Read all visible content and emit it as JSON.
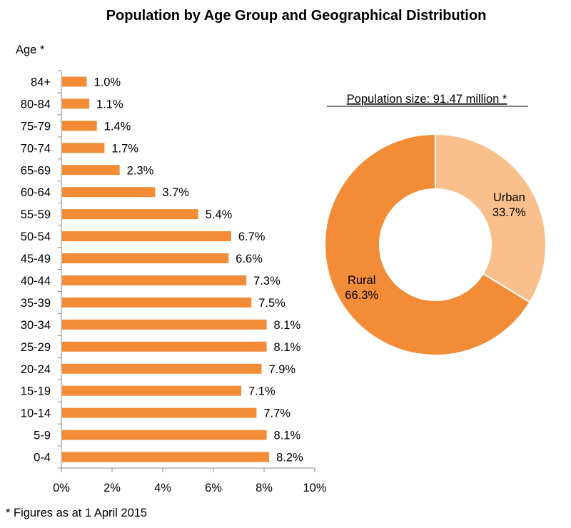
{
  "title": "Population by Age Group and Geographical Distribution",
  "footnote": "* Figures as at 1 April 2015",
  "colors": {
    "bar": "#f28c37",
    "rural": "#f28c37",
    "urban": "#f9c08e"
  },
  "chart_data": [
    {
      "type": "bar",
      "orientation": "horizontal",
      "ylabel": "Age  *",
      "categories": [
        "84+",
        "80-84",
        "75-79",
        "70-74",
        "65-69",
        "60-64",
        "55-59",
        "50-54",
        "45-49",
        "40-44",
        "35-39",
        "30-34",
        "25-29",
        "20-24",
        "15-19",
        "10-14",
        "5-9",
        "0-4"
      ],
      "values": [
        1.0,
        1.1,
        1.4,
        1.7,
        2.3,
        3.7,
        5.4,
        6.7,
        6.6,
        7.3,
        7.5,
        8.1,
        8.1,
        7.9,
        7.1,
        7.7,
        8.1,
        8.2
      ],
      "value_labels": [
        "1.0%",
        "1.1%",
        "1.4%",
        "1.7%",
        "2.3%",
        "3.7%",
        "5.4%",
        "6.7%",
        "6.6%",
        "7.3%",
        "7.5%",
        "8.1%",
        "8.1%",
        "7.9%",
        "7.1%",
        "7.7%",
        "8.1%",
        "8.2%"
      ],
      "xlim": [
        0,
        10
      ],
      "xticks": [
        "0%",
        "2%",
        "4%",
        "6%",
        "8%",
        "10%"
      ],
      "grid": false
    },
    {
      "type": "pie",
      "variant": "donut",
      "title": "Population size: 91.47 million  *",
      "slices": [
        {
          "name": "Urban",
          "value": 33.7,
          "label": "33.7%"
        },
        {
          "name": "Rural",
          "value": 66.3,
          "label": "66.3%"
        }
      ]
    }
  ]
}
